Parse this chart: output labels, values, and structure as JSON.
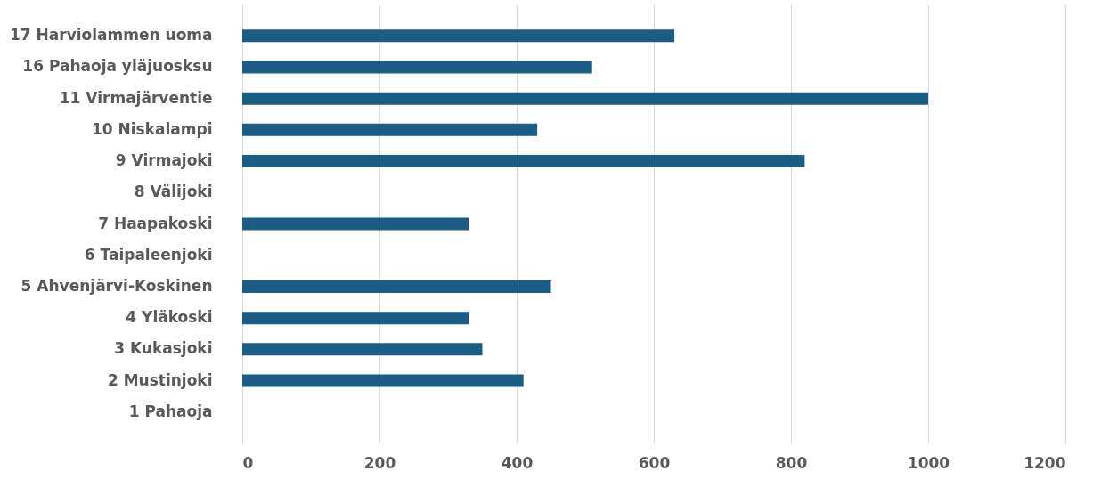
{
  "chart_data": {
    "type": "bar",
    "orientation": "horizontal",
    "categories": [
      "17 Harviolammen uoma",
      "16 Pahaoja yläjuosksu",
      "11 Virmajärventie",
      "10 Niskalampi",
      "9 Virmajoki",
      "8 Välijoki",
      "7 Haapakoski",
      "6 Taipaleenjoki",
      "5 Ahvenjärvi-Koskinen",
      "4 Yläkoski",
      "3 Kukasjoki",
      "2 Mustinjoki",
      "1 Pahaoja"
    ],
    "values": [
      630,
      510,
      1000,
      430,
      820,
      null,
      330,
      null,
      450,
      330,
      350,
      410,
      null
    ],
    "color": "#1b5e85",
    "xlim": [
      0,
      1200
    ],
    "xticks": [
      0,
      200,
      400,
      600,
      800,
      1000,
      1200
    ],
    "grid": "x"
  }
}
